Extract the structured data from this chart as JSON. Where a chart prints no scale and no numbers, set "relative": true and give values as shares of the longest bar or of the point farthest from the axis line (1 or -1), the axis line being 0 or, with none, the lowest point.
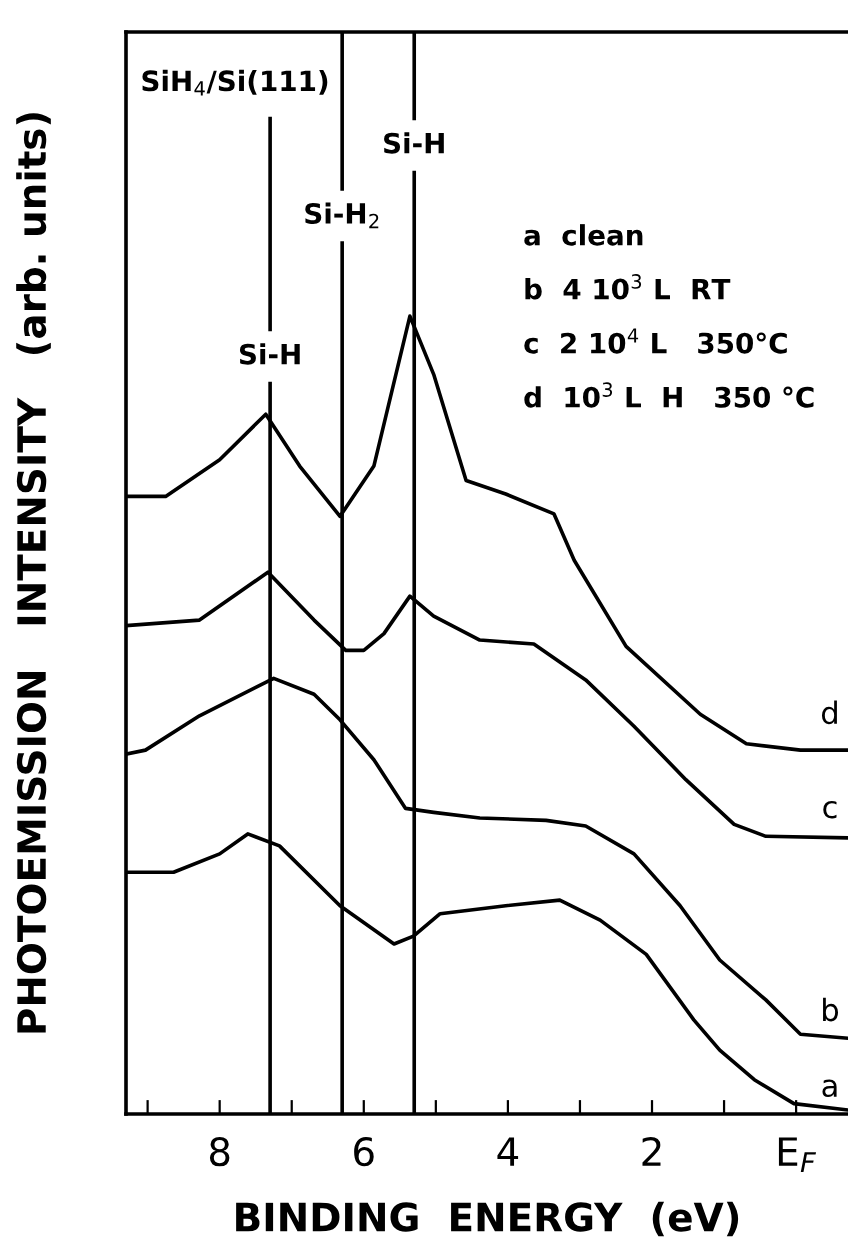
{
  "chart_data": {
    "type": "line",
    "relative": true,
    "xlabel": "BINDING  ENERGY  (eV)",
    "ylabel": "PHOTOEMISSION   INTENSITY   (arb. units)",
    "xlim": [
      9.3,
      -0.72
    ],
    "xticks": [
      {
        "value": 9,
        "label": null
      },
      8,
      {
        "value": 7,
        "label": null
      },
      6,
      {
        "value": 5,
        "label": null
      },
      4,
      {
        "value": 3,
        "label": null
      },
      2,
      {
        "value": 1,
        "label": null
      },
      {
        "value": 0,
        "label": "E$_{F}$"
      }
    ],
    "grid": false,
    "legend": false,
    "tick_labels": "x",
    "marker": "none",
    "line_style": "solid",
    "series": [
      {
        "name": "a",
        "color": "#000000",
        "x": [
          9.3,
          8.64,
          8.0,
          7.61,
          7.17,
          6.33,
          5.58,
          5.31,
          4.94,
          4.03,
          3.28,
          2.72,
          2.08,
          1.42,
          1.06,
          0.58,
          0.03,
          -0.72
        ],
        "values": [
          0.303,
          0.303,
          0.326,
          0.351,
          0.336,
          0.261,
          0.213,
          0.223,
          0.251,
          0.261,
          0.268,
          0.243,
          0.2,
          0.118,
          0.08,
          0.043,
          0.013,
          0.005
        ]
      },
      {
        "name": "b",
        "color": "#000000",
        "x": [
          9.3,
          9.03,
          8.28,
          7.25,
          6.69,
          6.33,
          5.86,
          5.42,
          5.03,
          4.39,
          3.47,
          2.92,
          2.25,
          1.61,
          1.06,
          0.42,
          -0.06,
          -0.72
        ],
        "values": [
          0.451,
          0.456,
          0.499,
          0.546,
          0.526,
          0.494,
          0.444,
          0.383,
          0.378,
          0.371,
          0.368,
          0.361,
          0.326,
          0.261,
          0.193,
          0.143,
          0.1,
          0.095
        ]
      },
      {
        "name": "c",
        "color": "#000000",
        "x": [
          9.3,
          8.28,
          7.33,
          6.69,
          6.25,
          6.0,
          5.72,
          5.36,
          5.03,
          4.39,
          3.64,
          2.92,
          2.25,
          1.53,
          0.86,
          0.42,
          -0.72
        ],
        "values": [
          0.612,
          0.619,
          0.679,
          0.619,
          0.581,
          0.581,
          0.602,
          0.649,
          0.624,
          0.594,
          0.589,
          0.544,
          0.486,
          0.419,
          0.363,
          0.348,
          0.346
        ]
      },
      {
        "name": "d",
        "color": "#000000",
        "x": [
          9.3,
          8.75,
          8.0,
          7.36,
          6.89,
          6.33,
          5.86,
          5.36,
          5.03,
          4.58,
          4.03,
          3.36,
          3.08,
          2.36,
          1.33,
          0.69,
          -0.06,
          -0.72
        ],
        "values": [
          0.774,
          0.774,
          0.82,
          0.877,
          0.812,
          0.749,
          0.812,
          1.0,
          0.927,
          0.794,
          0.777,
          0.752,
          0.694,
          0.586,
          0.501,
          0.464,
          0.456,
          0.456
        ]
      }
    ],
    "ref_lines": [
      {
        "axis": "x",
        "value": 7.3,
        "label": "Si-H",
        "color": "#000000"
      },
      {
        "axis": "x",
        "value": 6.3,
        "label": "Si-H$_{2}$",
        "color": "#000000"
      },
      {
        "axis": "x",
        "value": 5.3,
        "label": "Si-H",
        "color": "#000000"
      }
    ],
    "annotations": [
      "SiH$_{4}$/Si(111)",
      "a  clean",
      "b  4 10$^{3}$ L  RT",
      "c  2 10$^{4}$ L   350°C",
      "d  10$^{3}$ L  H   350 °C"
    ]
  }
}
